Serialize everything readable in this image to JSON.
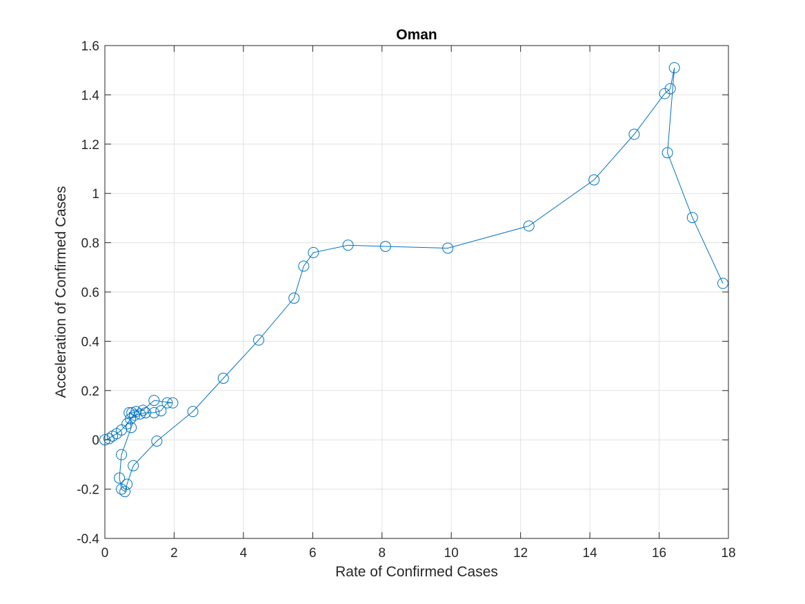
{
  "chart_data": {
    "type": "line",
    "title": "Oman",
    "xlabel": "Rate of Confirmed Cases",
    "ylabel": "Acceleration of Confirmed Cases",
    "xlim": [
      0,
      18
    ],
    "ylim": [
      -0.4,
      1.6
    ],
    "xticks": [
      0,
      2,
      4,
      6,
      8,
      10,
      12,
      14,
      16,
      18
    ],
    "yticks": [
      -0.4,
      -0.2,
      0,
      0.2,
      0.4,
      0.6,
      0.8,
      1,
      1.2,
      1.4,
      1.6
    ],
    "xtick_labels": [
      "0",
      "2",
      "4",
      "6",
      "8",
      "10",
      "12",
      "14",
      "16",
      "18"
    ],
    "ytick_labels": [
      "-0.4",
      "-0.2",
      "0",
      "0.2",
      "0.4",
      "0.6",
      "0.8",
      "1",
      "1.2",
      "1.4",
      "1.6"
    ],
    "grid": true,
    "marker": "circle",
    "series_color": "#0072BD",
    "series": [
      {
        "x": [
          0.0,
          0.12,
          0.22,
          0.34,
          0.48,
          0.64,
          0.74,
          0.86,
          1.02,
          1.18,
          1.42,
          1.62,
          1.8,
          1.96,
          1.42,
          1.1,
          0.9,
          0.78,
          0.7,
          0.76,
          0.48,
          0.42,
          0.48,
          0.58,
          0.64,
          0.82,
          1.5,
          2.54,
          3.42,
          4.44,
          5.46,
          5.74,
          6.02,
          7.02,
          8.1,
          9.9,
          12.24,
          14.12,
          15.28,
          16.16,
          16.32,
          16.44,
          16.24,
          16.96,
          17.84
        ],
        "y": [
          0.0,
          0.005,
          0.015,
          0.025,
          0.04,
          0.065,
          0.085,
          0.1,
          0.105,
          0.11,
          0.11,
          0.118,
          0.15,
          0.15,
          0.16,
          0.12,
          0.115,
          0.11,
          0.11,
          0.05,
          -0.06,
          -0.155,
          -0.2,
          -0.21,
          -0.18,
          -0.105,
          -0.005,
          0.115,
          0.25,
          0.405,
          0.575,
          0.705,
          0.76,
          0.79,
          0.785,
          0.778,
          0.868,
          1.055,
          1.24,
          1.405,
          1.425,
          1.51,
          1.165,
          0.902,
          0.635
        ]
      }
    ]
  }
}
